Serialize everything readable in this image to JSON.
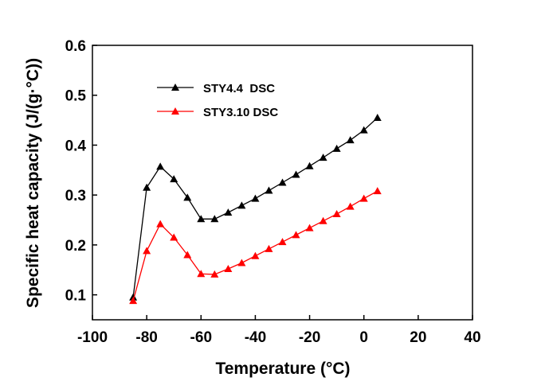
{
  "chart_data": {
    "type": "line",
    "x_label": "Temperature (°C)",
    "y_label": "Specific heat capacity (J/(g·°C))",
    "x": [
      -85,
      -80,
      -75,
      -70,
      -65,
      -60,
      -55,
      -50,
      -45,
      -40,
      -35,
      -30,
      -25,
      -20,
      -15,
      -10,
      -5,
      0,
      5
    ],
    "series": [
      {
        "name": "STY4.4  DSC",
        "color": "#000000",
        "values": [
          0.095,
          0.315,
          0.357,
          0.332,
          0.295,
          0.252,
          0.252,
          0.265,
          0.279,
          0.293,
          0.309,
          0.325,
          0.341,
          0.358,
          0.375,
          0.393,
          0.41,
          0.43,
          0.455
        ]
      },
      {
        "name": "STY3.10 DSC",
        "color": "#ff0000",
        "values": [
          0.088,
          0.188,
          0.242,
          0.215,
          0.18,
          0.142,
          0.141,
          0.152,
          0.164,
          0.178,
          0.192,
          0.206,
          0.22,
          0.234,
          0.248,
          0.262,
          0.277,
          0.293,
          0.308
        ]
      }
    ],
    "xlim": [
      -100,
      40
    ],
    "xticks": [
      -100,
      -80,
      -60,
      -40,
      -20,
      0,
      20,
      40
    ],
    "ylim": [
      0.05,
      0.6
    ],
    "yticks": [
      0.1,
      0.2,
      0.3,
      0.4,
      0.5,
      0.6
    ]
  }
}
